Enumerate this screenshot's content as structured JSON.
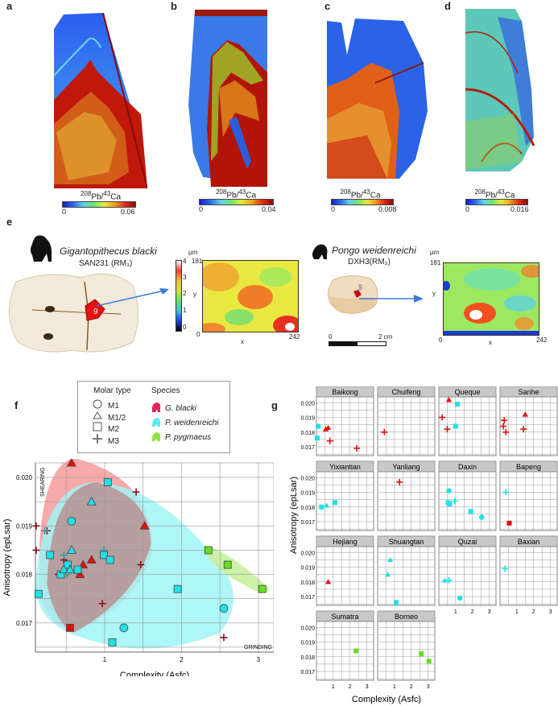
{
  "panels": {
    "a": {
      "letter": "a",
      "colorbar_label": "208Pb/43Ca",
      "cmin": "0",
      "cmax": "0.06"
    },
    "b": {
      "letter": "b",
      "colorbar_label": "208Pb/43Ca",
      "cmin": "0",
      "cmax": "0.04"
    },
    "c": {
      "letter": "c",
      "colorbar_label": "208Pb/43Ca",
      "cmin": "0",
      "cmax": "0.008"
    },
    "d": {
      "letter": "d",
      "colorbar_label": "208Pb/43Ca",
      "cmin": "0",
      "cmax": "0.016"
    },
    "e": {
      "letter": "e",
      "left": {
        "species": "Gigantopithecus blacki",
        "specimen": "SAN231 (RM₃)",
        "site_number": "9",
        "surface": {
          "unit": "µm",
          "y_max": "181",
          "x_min": "0",
          "x_max": "242",
          "x_label": "x",
          "y_label": "y",
          "scale_ticks": [
            "4",
            "3",
            "2",
            "1",
            "0"
          ]
        }
      },
      "right": {
        "species": "Pongo weidenreichi",
        "specimen": "DXH3(RM₃)",
        "site_number": "9",
        "scale_bar": {
          "start": "0",
          "end": "2 cm"
        },
        "surface": {
          "unit": "µm",
          "y_max": "181",
          "x_min": "0",
          "x_max": "242",
          "x_label": "x",
          "y_label": "y"
        }
      }
    },
    "f": {
      "letter": "f"
    },
    "g": {
      "letter": "g"
    }
  },
  "legend": {
    "molar_title": "Molar type",
    "molar_types": [
      {
        "label": "M1",
        "shape": "circle"
      },
      {
        "label": "M1/2",
        "shape": "triangle"
      },
      {
        "label": "M2",
        "shape": "square"
      },
      {
        "label": "M3",
        "shape": "plus"
      }
    ],
    "species_title": "Species",
    "species": [
      {
        "label": "G. blacki",
        "color": "#e3245a"
      },
      {
        "label": "P. weidenreichi",
        "color": "#5ee8f0"
      },
      {
        "label": "P. pygmaeus",
        "color": "#8ee23a"
      }
    ]
  },
  "colors": {
    "g_blacki": "#e01010",
    "g_blacki_plus": "#8b1020",
    "p_weid": "#22e0e8",
    "p_pyg": "#66dd22",
    "hull_red": "#f7a0a0",
    "hull_cyan": "#a0f4f6",
    "hull_green": "#c6f0a0",
    "hull_overlap": "#b89292"
  },
  "chart_data": [
    {
      "type": "scatter",
      "title": "f",
      "xlabel": "Complexity (Asfc)",
      "ylabel": "Anisotropy (epLsar)",
      "xlim": [
        0.1,
        3.2
      ],
      "ylim": [
        0.0164,
        0.0203
      ],
      "xticks": [
        "1",
        "2",
        "3"
      ],
      "yticks": [
        "0.017",
        "0.018",
        "0.019",
        "0.020"
      ],
      "grid": true,
      "annotations": [
        "SHEARING",
        "GRINDING"
      ],
      "series": [
        {
          "name": "G. blacki",
          "points": [
            {
              "x": 0.57,
              "y": 0.0203,
              "m": "triangle"
            },
            {
              "x": 1.52,
              "y": 0.019,
              "m": "triangle"
            },
            {
              "x": 0.83,
              "y": 0.0183,
              "m": "triangle"
            },
            {
              "x": 0.72,
              "y": 0.0182,
              "m": "triangle"
            },
            {
              "x": 0.68,
              "y": 0.018,
              "m": "triangle"
            },
            {
              "x": 0.55,
              "y": 0.0169,
              "m": "square"
            },
            {
              "x": 0.11,
              "y": 0.019,
              "m": "plus"
            },
            {
              "x": 0.11,
              "y": 0.0185,
              "m": "plus"
            },
            {
              "x": 0.25,
              "y": 0.0189,
              "m": "plus"
            },
            {
              "x": 0.4,
              "y": 0.018,
              "m": "plus"
            },
            {
              "x": 0.47,
              "y": 0.0183,
              "m": "plus"
            },
            {
              "x": 1.41,
              "y": 0.0197,
              "m": "plus"
            },
            {
              "x": 1.47,
              "y": 0.0182,
              "m": "plus"
            },
            {
              "x": 0.97,
              "y": 0.0174,
              "m": "plus"
            },
            {
              "x": 2.55,
              "y": 0.0167,
              "m": "plus"
            }
          ]
        },
        {
          "name": "P. weidenreichi",
          "points": [
            {
              "x": 1.04,
              "y": 0.0199,
              "m": "square"
            },
            {
              "x": 0.83,
              "y": 0.0195,
              "m": "triangle"
            },
            {
              "x": 0.57,
              "y": 0.0191,
              "m": "circle"
            },
            {
              "x": 0.22,
              "y": 0.0189,
              "m": "plus"
            },
            {
              "x": 0.57,
              "y": 0.0185,
              "m": "triangle"
            },
            {
              "x": 0.99,
              "y": 0.0185,
              "m": "plus"
            },
            {
              "x": 0.99,
              "y": 0.0184,
              "m": "square"
            },
            {
              "x": 1.07,
              "y": 0.0183,
              "m": "square"
            },
            {
              "x": 0.29,
              "y": 0.0184,
              "m": "square"
            },
            {
              "x": 0.52,
              "y": 0.0182,
              "m": "square"
            },
            {
              "x": 0.47,
              "y": 0.0184,
              "m": "plus"
            },
            {
              "x": 0.65,
              "y": 0.0181,
              "m": "square"
            },
            {
              "x": 0.43,
              "y": 0.018,
              "m": "square"
            },
            {
              "x": 0.47,
              "y": 0.0181,
              "m": "triangle"
            },
            {
              "x": 0.55,
              "y": 0.0181,
              "m": "triangle"
            },
            {
              "x": 0.51,
              "y": 0.018,
              "m": "plus"
            },
            {
              "x": 0.14,
              "y": 0.0176,
              "m": "square"
            },
            {
              "x": 1.95,
              "y": 0.0177,
              "m": "square"
            },
            {
              "x": 2.55,
              "y": 0.0173,
              "m": "circle"
            },
            {
              "x": 1.25,
              "y": 0.0169,
              "m": "circle"
            },
            {
              "x": 1.1,
              "y": 0.0166,
              "m": "square"
            }
          ]
        },
        {
          "name": "P. pygmaeus",
          "points": [
            {
              "x": 2.35,
              "y": 0.0185,
              "m": "square"
            },
            {
              "x": 2.6,
              "y": 0.0182,
              "m": "square"
            },
            {
              "x": 3.05,
              "y": 0.0177,
              "m": "square"
            }
          ]
        }
      ]
    },
    {
      "type": "scatter",
      "title": "g",
      "xlabel": "Complexity (Asfc)",
      "ylabel": "Anisotropy (epLsar)",
      "xlim": [
        0,
        3.4
      ],
      "ylim": [
        0.0164,
        0.0204
      ],
      "xticks": [
        "1",
        "2",
        "3"
      ],
      "yticks": [
        "0.017",
        "0.018",
        "0.019",
        "0.020"
      ],
      "facets": [
        {
          "name": "Baikong",
          "points": [
            {
              "x": 0.1,
              "y": 0.0184,
              "s": "P",
              "m": "square"
            },
            {
              "x": 0.05,
              "y": 0.0176,
              "s": "P",
              "m": "square"
            },
            {
              "x": 0.55,
              "y": 0.0182,
              "s": "G",
              "m": "triangle"
            },
            {
              "x": 0.7,
              "y": 0.0183,
              "s": "G",
              "m": "triangle"
            },
            {
              "x": 0.8,
              "y": 0.0174,
              "s": "G",
              "m": "plus"
            },
            {
              "x": 2.4,
              "y": 0.0169,
              "s": "G",
              "m": "plus"
            }
          ]
        },
        {
          "name": "Chuifeng",
          "points": [
            {
              "x": 0.4,
              "y": 0.018,
              "s": "G",
              "m": "plus"
            }
          ]
        },
        {
          "name": "Queque",
          "points": [
            {
              "x": 0.6,
              "y": 0.0202,
              "s": "G",
              "m": "triangle"
            },
            {
              "x": 1.1,
              "y": 0.0199,
              "s": "P",
              "m": "square"
            },
            {
              "x": 1.0,
              "y": 0.0184,
              "s": "P",
              "m": "square"
            },
            {
              "x": 0.2,
              "y": 0.019,
              "s": "G",
              "m": "plus"
            },
            {
              "x": 0.5,
              "y": 0.0182,
              "s": "G",
              "m": "plus"
            }
          ]
        },
        {
          "name": "Sanhe",
          "points": [
            {
              "x": 1.5,
              "y": 0.0192,
              "s": "G",
              "m": "triangle"
            },
            {
              "x": 0.25,
              "y": 0.0188,
              "s": "G",
              "m": "plus"
            },
            {
              "x": 0.2,
              "y": 0.0184,
              "s": "G",
              "m": "plus"
            },
            {
              "x": 0.35,
              "y": 0.018,
              "s": "G",
              "m": "plus"
            },
            {
              "x": 1.4,
              "y": 0.0182,
              "s": "G",
              "m": "plus"
            }
          ]
        },
        {
          "name": "Yixiantian",
          "points": [
            {
              "x": 0.3,
              "y": 0.018,
              "s": "P",
              "m": "square"
            },
            {
              "x": 0.6,
              "y": 0.0181,
              "s": "P",
              "m": "triangle"
            },
            {
              "x": 1.1,
              "y": 0.0183,
              "s": "P",
              "m": "square"
            }
          ]
        },
        {
          "name": "Yanliang",
          "points": [
            {
              "x": 1.3,
              "y": 0.0197,
              "s": "G",
              "m": "plus"
            }
          ]
        },
        {
          "name": "Daxin",
          "points": [
            {
              "x": 0.6,
              "y": 0.0191,
              "s": "P",
              "m": "circle"
            },
            {
              "x": 0.55,
              "y": 0.0183,
              "s": "P",
              "m": "square"
            },
            {
              "x": 0.65,
              "y": 0.0182,
              "s": "P",
              "m": "square"
            },
            {
              "x": 0.95,
              "y": 0.0184,
              "s": "P",
              "m": "plus"
            },
            {
              "x": 1.9,
              "y": 0.0177,
              "s": "P",
              "m": "square"
            },
            {
              "x": 2.55,
              "y": 0.0173,
              "s": "P",
              "m": "circle"
            }
          ]
        },
        {
          "name": "Bapeng",
          "points": [
            {
              "x": 0.35,
              "y": 0.019,
              "s": "P",
              "m": "plus"
            },
            {
              "x": 0.55,
              "y": 0.0169,
              "s": "G",
              "m": "square"
            }
          ]
        },
        {
          "name": "Hejiang",
          "points": [
            {
              "x": 0.7,
              "y": 0.018,
              "s": "G",
              "m": "triangle"
            }
          ]
        },
        {
          "name": "Shuangtan",
          "points": [
            {
              "x": 0.75,
              "y": 0.0195,
              "s": "P",
              "m": "triangle"
            },
            {
              "x": 0.6,
              "y": 0.0185,
              "s": "P",
              "m": "triangle"
            },
            {
              "x": 1.1,
              "y": 0.0166,
              "s": "P",
              "m": "square"
            }
          ]
        },
        {
          "name": "Quzai",
          "points": [
            {
              "x": 0.35,
              "y": 0.0181,
              "s": "P",
              "m": "triangle"
            },
            {
              "x": 0.6,
              "y": 0.0181,
              "s": "P",
              "m": "plus"
            },
            {
              "x": 1.25,
              "y": 0.0169,
              "s": "P",
              "m": "circle"
            }
          ]
        },
        {
          "name": "Baxian",
          "points": [
            {
              "x": 0.3,
              "y": 0.0189,
              "s": "P",
              "m": "plus"
            }
          ]
        },
        {
          "name": "Sumatra",
          "points": [
            {
              "x": 2.35,
              "y": 0.0184,
              "s": "Y",
              "m": "square"
            }
          ]
        },
        {
          "name": "Borneo",
          "points": [
            {
              "x": 2.6,
              "y": 0.0182,
              "s": "Y",
              "m": "square"
            },
            {
              "x": 3.05,
              "y": 0.0177,
              "s": "Y",
              "m": "square"
            }
          ]
        }
      ]
    }
  ]
}
